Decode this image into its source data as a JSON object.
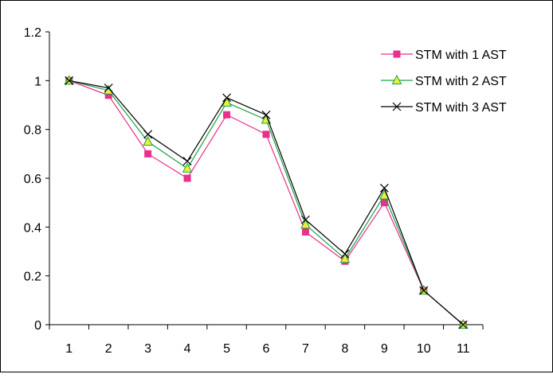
{
  "chart_data": {
    "type": "line",
    "title": "",
    "xlabel": "",
    "ylabel": "",
    "categories": [
      "1",
      "2",
      "3",
      "4",
      "5",
      "6",
      "7",
      "8",
      "9",
      "10",
      "11"
    ],
    "ylim": [
      0,
      1.2
    ],
    "yticks": [
      "0",
      "0.2",
      "0.4",
      "0.6",
      "0.8",
      "1",
      "1.2"
    ],
    "grid": false,
    "legend_position": "top-right",
    "series": [
      {
        "name": "STM with 1 AST",
        "marker": "square",
        "color": "#e8308c",
        "values": [
          1.0,
          0.94,
          0.7,
          0.6,
          0.86,
          0.78,
          0.38,
          0.26,
          0.5,
          0.14,
          0.0
        ]
      },
      {
        "name": "STM with 2 AST",
        "marker": "triangle",
        "color": "#1aa345",
        "marker_fill": "#ecf03a",
        "values": [
          1.0,
          0.96,
          0.75,
          0.64,
          0.91,
          0.84,
          0.41,
          0.27,
          0.53,
          0.14,
          0.0
        ]
      },
      {
        "name": "STM with 3 AST",
        "marker": "x",
        "color": "#000000",
        "values": [
          1.0,
          0.97,
          0.78,
          0.67,
          0.93,
          0.86,
          0.43,
          0.29,
          0.56,
          0.14,
          0.0
        ]
      }
    ]
  }
}
